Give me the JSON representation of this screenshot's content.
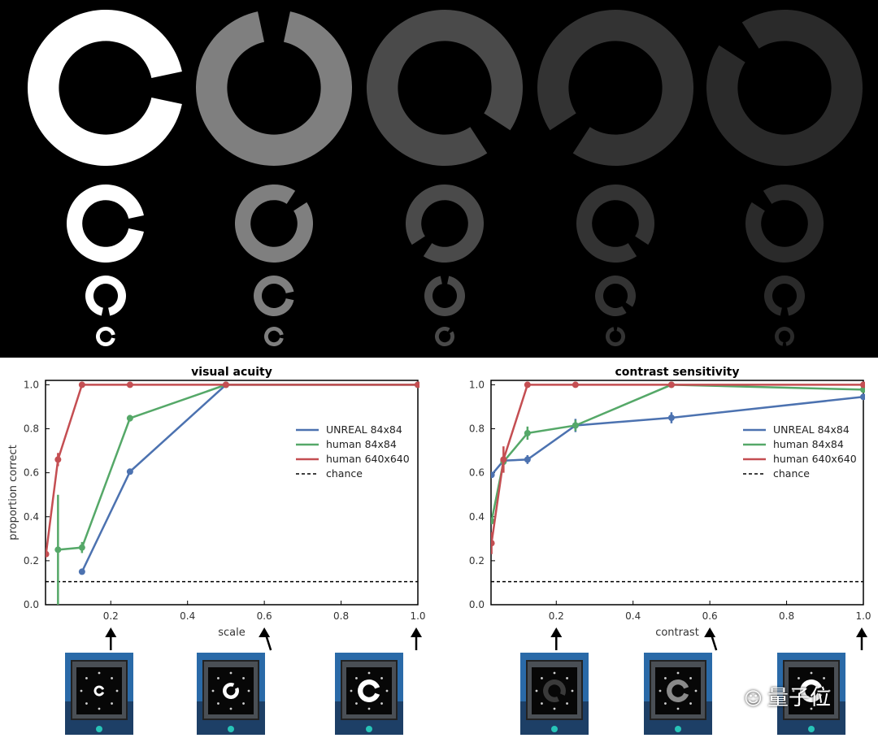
{
  "chart_data": [
    {
      "type": "line",
      "title": "visual acuity",
      "xlabel": "scale",
      "ylabel": "proportion correct",
      "xlim": [
        0.03,
        1.0
      ],
      "ylim": [
        0.0,
        1.02
      ],
      "xticks": [
        0.2,
        0.4,
        0.6,
        0.8,
        1.0
      ],
      "xtick_labels": [
        "0.2",
        "0.4",
        "0.6",
        "0.8",
        "1.0"
      ],
      "yticks": [
        0.0,
        0.2,
        0.4,
        0.6,
        0.8,
        1.0
      ],
      "ytick_labels": [
        "0.0",
        "0.2",
        "0.4",
        "0.6",
        "0.8",
        "1.0"
      ],
      "chance": 0.105,
      "legend_position": "center-right",
      "series": [
        {
          "name": "UNREAL 84x84",
          "color": "#4c72b0",
          "x": [
            0.125,
            0.25,
            0.5,
            1.0
          ],
          "y": [
            0.15,
            0.605,
            1.0,
            1.0
          ],
          "err": [
            0,
            0,
            0,
            0
          ]
        },
        {
          "name": "human 84x84",
          "color": "#55a868",
          "x": [
            0.0625,
            0.125,
            0.25,
            0.5,
            1.0
          ],
          "y": [
            0.25,
            0.26,
            0.848,
            1.0,
            1.0
          ],
          "err": [
            0.25,
            0.025,
            0.015,
            0,
            0
          ]
        },
        {
          "name": "human 640x640",
          "color": "#c44e52",
          "x": [
            0.03125,
            0.0625,
            0.125,
            0.25,
            0.5,
            1.0
          ],
          "y": [
            0.23,
            0.66,
            1.0,
            1.0,
            1.0,
            1.0
          ],
          "err": [
            0,
            0.03,
            0,
            0,
            0,
            0
          ]
        }
      ],
      "legend_chance": "chance"
    },
    {
      "type": "line",
      "title": "contrast sensitivity",
      "xlabel": "contrast",
      "ylabel": "",
      "xlim": [
        0.03,
        1.0
      ],
      "ylim": [
        0.0,
        1.02
      ],
      "xticks": [
        0.2,
        0.4,
        0.6,
        0.8,
        1.0
      ],
      "xtick_labels": [
        "0.2",
        "0.4",
        "0.6",
        "0.8",
        "1.0"
      ],
      "yticks": [
        0.0,
        0.2,
        0.4,
        0.6,
        0.8,
        1.0
      ],
      "ytick_labels": [
        "0.0",
        "0.2",
        "0.4",
        "0.6",
        "0.8",
        "1.0"
      ],
      "chance": 0.105,
      "legend_position": "center-right",
      "series": [
        {
          "name": "UNREAL 84x84",
          "color": "#4c72b0",
          "x": [
            0.03125,
            0.0625,
            0.125,
            0.25,
            0.5,
            1.0
          ],
          "y": [
            0.59,
            0.655,
            0.66,
            0.815,
            0.85,
            0.945
          ],
          "err": [
            0,
            0.015,
            0.02,
            0.03,
            0.025,
            0
          ]
        },
        {
          "name": "human 84x84",
          "color": "#55a868",
          "x": [
            0.03125,
            0.0625,
            0.125,
            0.25,
            0.5,
            1.0
          ],
          "y": [
            0.38,
            0.65,
            0.78,
            0.815,
            1.0,
            0.978
          ],
          "err": [
            0,
            0.015,
            0.03,
            0.025,
            0,
            0
          ]
        },
        {
          "name": "human 640x640",
          "color": "#c44e52",
          "x": [
            0.03125,
            0.0625,
            0.125,
            0.25,
            0.5,
            1.0
          ],
          "y": [
            0.28,
            0.66,
            1.0,
            1.0,
            1.0,
            1.0
          ],
          "err": [
            0.05,
            0.06,
            0,
            0,
            0,
            0
          ]
        }
      ],
      "legend_chance": "chance"
    }
  ],
  "stimuli": {
    "rows": [
      {
        "brightness": [
          "#ffffff",
          "#7f7f7f",
          "#4a4a4a",
          "#333333",
          "#2a2a2a"
        ],
        "gap_angle": [
          0,
          270,
          45,
          135,
          225
        ]
      },
      {
        "brightness": [
          "#ffffff",
          "#7f7f7f",
          "#4a4a4a",
          "#333333",
          "#2a2a2a"
        ],
        "gap_angle": [
          0,
          315,
          135,
          45,
          225
        ]
      },
      {
        "brightness": [
          "#ffffff",
          "#7f7f7f",
          "#4a4a4a",
          "#333333",
          "#2a2a2a"
        ],
        "gap_angle": [
          90,
          0,
          270,
          45,
          90
        ]
      },
      {
        "brightness": [
          "#ffffff",
          "#7f7f7f",
          "#4a4a4a",
          "#333333",
          "#2a2a2a"
        ],
        "gap_angle": [
          0,
          0,
          315,
          270,
          90
        ]
      }
    ]
  },
  "thumbnails": {
    "visual_acuity": [
      {
        "ring_color": "#ffffff",
        "ring_scale": 0.25,
        "gap_angle": 0
      },
      {
        "ring_color": "#ffffff",
        "ring_scale": 0.6,
        "gap_angle": 315
      },
      {
        "ring_color": "#ffffff",
        "ring_scale": 1.0,
        "gap_angle": 0
      }
    ],
    "contrast_sensitivity": [
      {
        "ring_color": "#3a3a3a",
        "ring_scale": 1.0,
        "gap_angle": 45
      },
      {
        "ring_color": "#8a8a8a",
        "ring_scale": 1.0,
        "gap_angle": 0
      },
      {
        "ring_color": "#ffffff",
        "ring_scale": 1.0,
        "gap_angle": 0
      }
    ]
  },
  "watermark": {
    "text": "量子位"
  }
}
